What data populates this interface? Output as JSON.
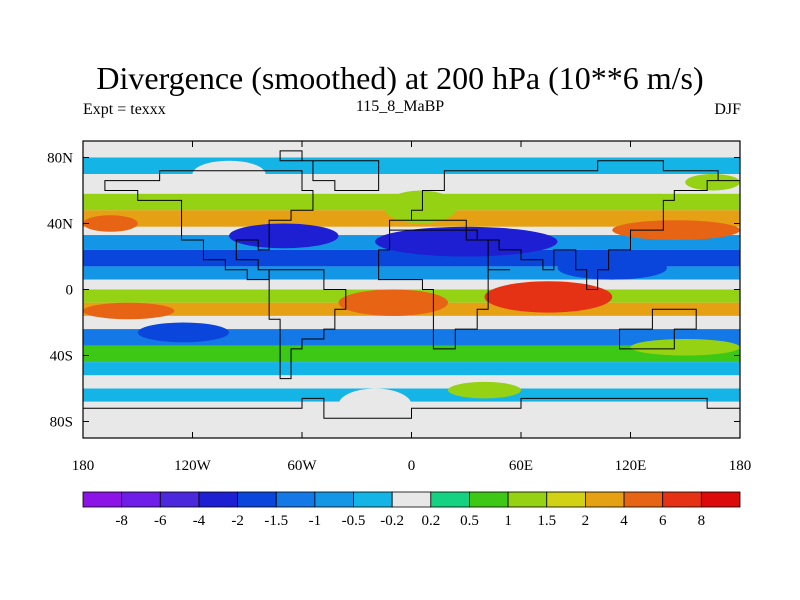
{
  "header": {
    "title": "Divergence (smoothed) at 200 hPa (10**6 m/s)",
    "left_label": "Expt = texxx",
    "center_label": "115_8_MaBP",
    "right_label": "DJF"
  },
  "chart_data": {
    "type": "heatmap",
    "title": "Divergence (smoothed) at 200 hPa (10**6 m/s)",
    "xlabel": "",
    "ylabel": "",
    "xlim": [
      -180,
      180
    ],
    "ylim": [
      -90,
      90
    ],
    "x_ticks": [
      {
        "value": -180,
        "label": "180"
      },
      {
        "value": -120,
        "label": "120W"
      },
      {
        "value": -60,
        "label": "60W"
      },
      {
        "value": 0,
        "label": "0"
      },
      {
        "value": 60,
        "label": "60E"
      },
      {
        "value": 120,
        "label": "120E"
      },
      {
        "value": 180,
        "label": "180"
      }
    ],
    "y_ticks": [
      {
        "value": 80,
        "label": "80N"
      },
      {
        "value": 40,
        "label": "40N"
      },
      {
        "value": 0,
        "label": "0"
      },
      {
        "value": -40,
        "label": "40S"
      },
      {
        "value": -80,
        "label": "80S"
      }
    ],
    "colorbar": {
      "labels": [
        "-8",
        "-6",
        "-4",
        "-2",
        "-1.5",
        "-1",
        "-0.5",
        "-0.2",
        "0.2",
        "0.5",
        "1",
        "1.5",
        "2",
        "4",
        "6",
        "8"
      ],
      "colors": [
        "#8c14e6",
        "#6e1ee6",
        "#4b28dc",
        "#1e1ed2",
        "#0a46dc",
        "#1478e6",
        "#1496e6",
        "#14b4e6",
        "#e8e8e8",
        "#14d282",
        "#3cc814",
        "#96d214",
        "#d2d214",
        "#e6a014",
        "#e66414",
        "#e63214",
        "#dc0a0a"
      ]
    },
    "bands": [
      {
        "lat_n": 80,
        "lat_s": 70,
        "value": -0.5
      },
      {
        "lat_n": 70,
        "lat_s": 64,
        "value": -0.2
      },
      {
        "lat_n": 64,
        "lat_s": 58,
        "value": 0.1
      },
      {
        "lat_n": 58,
        "lat_s": 48,
        "value": 1
      },
      {
        "lat_n": 48,
        "lat_s": 38,
        "value": 2
      },
      {
        "lat_n": 38,
        "lat_s": 33,
        "value": 0.1
      },
      {
        "lat_n": 33,
        "lat_s": 24,
        "value": -1
      },
      {
        "lat_n": 24,
        "lat_s": 14,
        "value": -2
      },
      {
        "lat_n": 14,
        "lat_s": 6,
        "value": -1
      },
      {
        "lat_n": 6,
        "lat_s": 0,
        "value": -0.2
      },
      {
        "lat_n": 0,
        "lat_s": -8,
        "value": 1
      },
      {
        "lat_n": -8,
        "lat_s": -16,
        "value": 2
      },
      {
        "lat_n": -16,
        "lat_s": -24,
        "value": 0.1
      },
      {
        "lat_n": -24,
        "lat_s": -34,
        "value": -1.5
      },
      {
        "lat_n": -34,
        "lat_s": -44,
        "value": 0.5
      },
      {
        "lat_n": -44,
        "lat_s": -52,
        "value": -0.5
      },
      {
        "lat_n": -52,
        "lat_s": -60,
        "value": 0.1
      },
      {
        "lat_n": -60,
        "lat_s": -68,
        "value": -0.5
      },
      {
        "lat_n": -68,
        "lat_s": -80,
        "value": 0.1
      }
    ],
    "cells": [
      {
        "lon1": -100,
        "lon2": -40,
        "lat1": 40,
        "lat2": 25,
        "value": -4
      },
      {
        "lon1": -20,
        "lon2": 80,
        "lat1": 38,
        "lat2": 20,
        "value": -4
      },
      {
        "lon1": 80,
        "lon2": 140,
        "lat1": 20,
        "lat2": 6,
        "value": -2
      },
      {
        "lon1": -40,
        "lon2": 20,
        "lat1": 0,
        "lat2": -16,
        "value": 4
      },
      {
        "lon1": 40,
        "lon2": 110,
        "lat1": 5,
        "lat2": -14,
        "value": 6
      },
      {
        "lon1": 110,
        "lon2": 180,
        "lat1": 42,
        "lat2": 30,
        "value": 4
      },
      {
        "lon1": -180,
        "lon2": -150,
        "lat1": 45,
        "lat2": 35,
        "value": 4
      },
      {
        "lon1": -180,
        "lon2": -130,
        "lat1": -8,
        "lat2": -18,
        "value": 4
      },
      {
        "lon1": -15,
        "lon2": 25,
        "lat1": 60,
        "lat2": 40,
        "value": 1
      },
      {
        "lon1": -150,
        "lon2": -100,
        "lat1": -20,
        "lat2": -32,
        "value": -2
      },
      {
        "lon1": -120,
        "lon2": -80,
        "lat1": 78,
        "lat2": 62,
        "value": 0.1
      },
      {
        "lon1": -40,
        "lon2": 0,
        "lat1": -60,
        "lat2": -80,
        "value": 0.1
      },
      {
        "lon1": 20,
        "lon2": 60,
        "lat1": -56,
        "lat2": -66,
        "value": 1
      },
      {
        "lon1": 120,
        "lon2": 180,
        "lat1": -30,
        "lat2": -40,
        "value": 1
      },
      {
        "lon1": 150,
        "lon2": 180,
        "lat1": 70,
        "lat2": 60,
        "value": 1
      }
    ]
  }
}
